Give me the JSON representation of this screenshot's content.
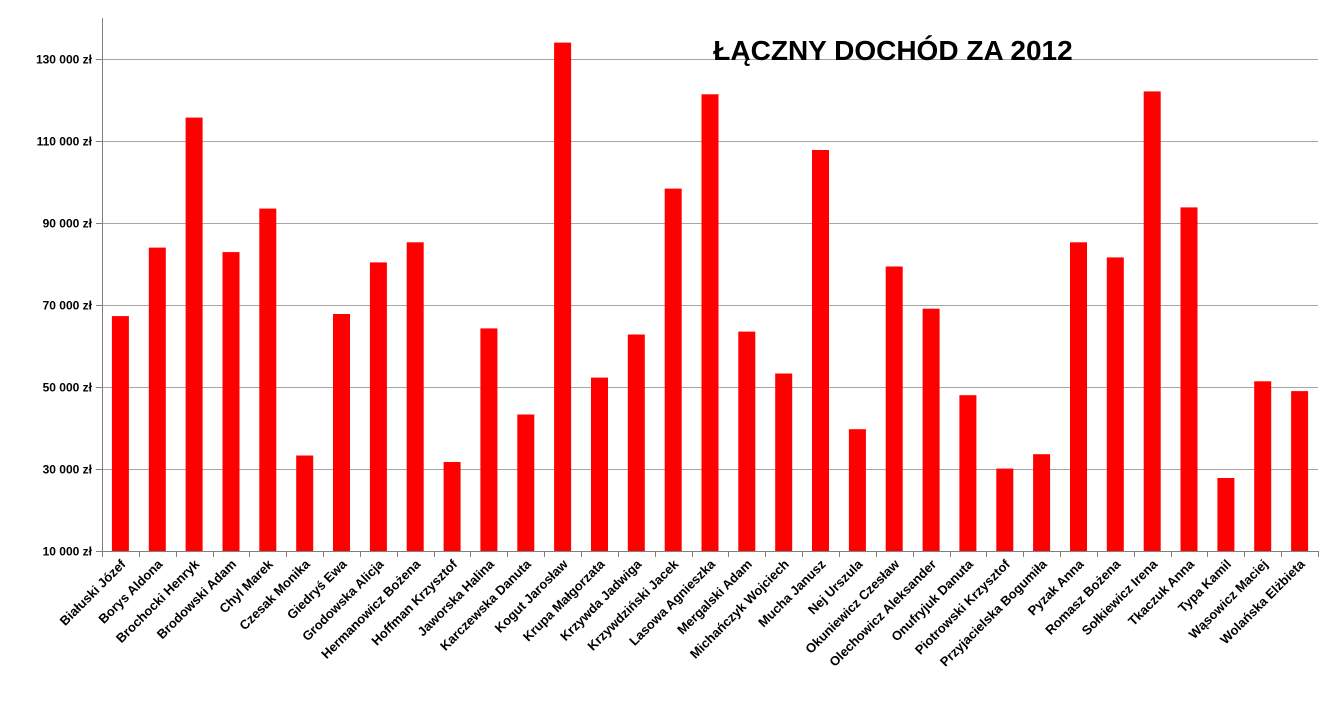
{
  "chart_data": {
    "type": "bar",
    "title": "ŁĄCZNY DOCHÓD ZA 2012",
    "xlabel": "",
    "ylabel": "",
    "ylim": [
      10000,
      140000
    ],
    "yticks": [
      10000,
      30000,
      50000,
      70000,
      90000,
      110000,
      130000
    ],
    "ytick_labels": [
      "10 000 zł",
      "30 000 zł",
      "50 000 zł",
      "70 000 zł",
      "90 000 zł",
      "110 000 zł",
      "130 000 zł"
    ],
    "grid": true,
    "bar_color": "#ff0000",
    "categories": [
      "Białuski Józef",
      "Borys Aldona",
      "Brochocki Henryk",
      "Brodowski Adam",
      "Chyl Marek",
      "Czesak Monika",
      "Giedryś Ewa",
      "Grodowska Alicja",
      "Hermanowicz Bożena",
      "Hoffman Krzysztof",
      "Jaworska Halina",
      "Karczewska Danuta",
      "Kogut Jarosław",
      "Krupa Małgorzata",
      "Krzywda Jadwiga",
      "Krzywdziński Jacek",
      "Lasowa Agnieszka",
      "Mergalski Adam",
      "Michańczyk Wojciech",
      "Mucha Janusz",
      "Nej Urszula",
      "Okuniewicz Czesław",
      "Olechowicz Aleksander",
      "Onufryjuk Danuta",
      "Piotrowski Krzysztof",
      "Przyjacielska Bogumiła",
      "Pyzak Anna",
      "Romasz Bożena",
      "Sołkiewicz Irena",
      "Tkaczuk Anna",
      "Typa Kamil",
      "Wąsowicz Maciej",
      "Wolańska Elżbieta"
    ],
    "values": [
      67300,
      84000,
      115700,
      82900,
      93500,
      33300,
      67800,
      80400,
      85300,
      31700,
      64300,
      43300,
      134000,
      52300,
      62800,
      98400,
      121400,
      63500,
      53300,
      107800,
      39700,
      79400,
      69100,
      48000,
      30100,
      33600,
      85300,
      81600,
      122100,
      93800,
      27800,
      51400,
      49000
    ]
  }
}
